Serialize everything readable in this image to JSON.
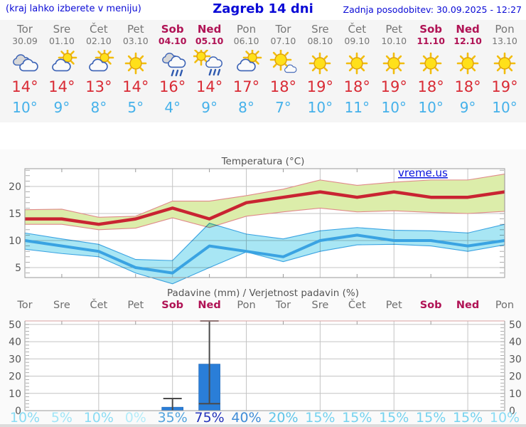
{
  "header": {
    "left_note": "(kraj lahko izberete v meniju)",
    "title": "Zagreb 14 dni",
    "updated": "Zadnja posodobitev: 30.09.2025 - 12:27"
  },
  "colors": {
    "accent_blue": "#0a0ad6",
    "weekday_text": "#767676",
    "weekend_text": "#b01355",
    "tmax_text": "#d92b35",
    "tmin_text": "#45b1ea",
    "line_max": "#c92432",
    "line_min": "#3aa3e2",
    "band_max": "#dcedaa",
    "band_max_edge": "#e08a8a",
    "band_min": "#a8e6f4",
    "bar_fill": "#2a7ed8",
    "whisker": "#4a4a4a",
    "grid": "#c4c4c4",
    "axis": "#999999",
    "axis_label": "#555555"
  },
  "days": [
    {
      "name": "Tor",
      "date": "30.09",
      "weekend": false,
      "icon": "cloudy",
      "tmax": "14°",
      "tmin": "10°",
      "prob": "10%",
      "prob_color": "#8adcf4"
    },
    {
      "name": "Sre",
      "date": "01.10",
      "weekend": false,
      "icon": "partly-cloudy",
      "tmax": "14°",
      "tmin": "9°",
      "prob": "5%",
      "prob_color": "#a0e5f7"
    },
    {
      "name": "Čet",
      "date": "02.10",
      "weekend": false,
      "icon": "partly-cloudy",
      "tmax": "13°",
      "tmin": "8°",
      "prob": "10%",
      "prob_color": "#8adcf4"
    },
    {
      "name": "Pet",
      "date": "03.10",
      "weekend": false,
      "icon": "sunny",
      "tmax": "14°",
      "tmin": "5°",
      "prob": "0%",
      "prob_color": "#b4ecf9"
    },
    {
      "name": "Sob",
      "date": "04.10",
      "weekend": true,
      "icon": "rain",
      "tmax": "16°",
      "tmin": "4°",
      "prob": "35%",
      "prob_color": "#53a4de"
    },
    {
      "name": "Ned",
      "date": "05.10",
      "weekend": true,
      "icon": "sun-rain",
      "tmax": "14°",
      "tmin": "9°",
      "prob": "75%",
      "prob_color": "#2433bb"
    },
    {
      "name": "Pon",
      "date": "06.10",
      "weekend": false,
      "icon": "partly-cloudy",
      "tmax": "17°",
      "tmin": "8°",
      "prob": "40%",
      "prob_color": "#3f8cd7"
    },
    {
      "name": "Tor",
      "date": "07.10",
      "weekend": false,
      "icon": "mostly-sunny",
      "tmax": "18°",
      "tmin": "7°",
      "prob": "20%",
      "prob_color": "#60c5e9"
    },
    {
      "name": "Sre",
      "date": "08.10",
      "weekend": false,
      "icon": "sunny",
      "tmax": "19°",
      "tmin": "10°",
      "prob": "15%",
      "prob_color": "#74d2ef"
    },
    {
      "name": "Čet",
      "date": "09.10",
      "weekend": false,
      "icon": "sunny",
      "tmax": "18°",
      "tmin": "11°",
      "prob": "15%",
      "prob_color": "#74d2ef"
    },
    {
      "name": "Pet",
      "date": "10.10",
      "weekend": false,
      "icon": "sunny",
      "tmax": "19°",
      "tmin": "10°",
      "prob": "15%",
      "prob_color": "#74d2ef"
    },
    {
      "name": "Sob",
      "date": "11.10",
      "weekend": true,
      "icon": "sunny",
      "tmax": "18°",
      "tmin": "10°",
      "prob": "15%",
      "prob_color": "#74d2ef"
    },
    {
      "name": "Ned",
      "date": "12.10",
      "weekend": true,
      "icon": "sunny",
      "tmax": "18°",
      "tmin": "9°",
      "prob": "15%",
      "prob_color": "#74d2ef"
    },
    {
      "name": "Pon",
      "date": "13.10",
      "weekend": false,
      "icon": "sunny",
      "tmax": "19°",
      "tmin": "10°",
      "prob": "10%",
      "prob_color": "#8adcf4"
    }
  ],
  "temp_chart": {
    "title": "Temperatura (°C)",
    "watermark": "vreme.us"
  },
  "precip_chart": {
    "title": "Padavine (mm) / Verjetnost padavin (%)"
  },
  "chart_data": [
    {
      "type": "line",
      "title": "Temperatura (°C)",
      "x": [
        "30.09",
        "01.10",
        "02.10",
        "03.10",
        "04.10",
        "05.10",
        "06.10",
        "07.10",
        "08.10",
        "09.10",
        "10.10",
        "11.10",
        "12.10",
        "13.10"
      ],
      "ylim": [
        3,
        23.5
      ],
      "yticks": [
        5,
        10,
        15,
        20
      ],
      "grid": true,
      "legend": "none",
      "watermark": "vreme.us",
      "series": [
        {
          "name": "max temperatura",
          "color": "#c92432",
          "values": [
            14,
            14,
            13,
            14,
            16,
            14,
            17,
            18,
            19,
            18,
            19,
            18,
            18,
            19
          ]
        },
        {
          "name": "max razpon zgornji rob",
          "color": "#dcedaa",
          "values": [
            15.7,
            15.8,
            14.3,
            14.5,
            17.3,
            17.3,
            18.3,
            19.5,
            21.2,
            20.2,
            20.8,
            21.2,
            21.2,
            22.3
          ]
        },
        {
          "name": "max razpon spodnji rob",
          "color": "#dcedaa",
          "values": [
            13,
            13,
            12,
            12.3,
            14.2,
            12.4,
            14.5,
            15.3,
            16,
            15.3,
            15.5,
            15.2,
            15,
            15.4
          ]
        },
        {
          "name": "min temperatura",
          "color": "#3aa3e2",
          "values": [
            10,
            9,
            8,
            5,
            4,
            9,
            8,
            7,
            10,
            11,
            10,
            10,
            9,
            10
          ]
        },
        {
          "name": "min razpon zgornji rob",
          "color": "#a8e6f4",
          "values": [
            11.4,
            10.3,
            9.3,
            6.5,
            6.3,
            13.2,
            11.2,
            10.3,
            11.8,
            12.4,
            11.9,
            11.8,
            11.4,
            13
          ]
        },
        {
          "name": "min razpon spodnji rob",
          "color": "#a8e6f4",
          "values": [
            8.4,
            7.6,
            7,
            4,
            2,
            5,
            7.9,
            6.1,
            8,
            9.2,
            9.3,
            9,
            8,
            9.2
          ]
        }
      ]
    },
    {
      "type": "bar",
      "title": "Padavine (mm) / Verjetnost padavin (%)",
      "categories": [
        "Tor",
        "Sre",
        "Čet",
        "Pet",
        "Sob",
        "Ned",
        "Pon",
        "Tor",
        "Sre",
        "Čet",
        "Pet",
        "Sob",
        "Ned",
        "Pon"
      ],
      "values_mm": [
        0,
        0,
        0,
        0,
        2,
        27,
        0,
        0,
        0,
        0,
        0,
        0,
        0,
        0
      ],
      "whisker_max": [
        null,
        null,
        null,
        null,
        7,
        52,
        null,
        null,
        null,
        null,
        null,
        null,
        null,
        null
      ],
      "whisker_min": [
        null,
        null,
        null,
        null,
        0,
        4,
        null,
        null,
        null,
        null,
        null,
        null,
        null,
        null
      ],
      "probability_pct": [
        10,
        5,
        10,
        0,
        35,
        75,
        40,
        20,
        15,
        15,
        15,
        15,
        15,
        10
      ],
      "ylim": [
        0,
        52
      ],
      "yticks": [
        0,
        10,
        20,
        30,
        40,
        50
      ],
      "grid": true,
      "legend": "none"
    }
  ]
}
